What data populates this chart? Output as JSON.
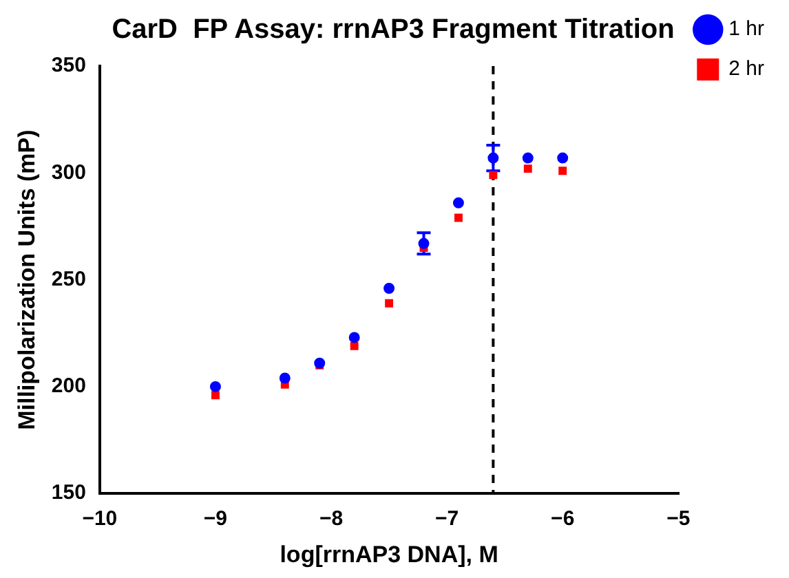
{
  "chart_data": {
    "type": "scatter",
    "title": "CarD  FP Assay: rrnAP3 Fragment Titration",
    "xlabel": "log[rrnAP3 DNA], M",
    "ylabel": "Millipolarization Units (mP)",
    "x": [
      -9,
      -8.4,
      -8.1,
      -7.8,
      -7.5,
      -7.2,
      -6.9,
      -6.6,
      -6.3,
      -6.0
    ],
    "series": [
      {
        "name": "1 hr",
        "color": "#0000ff",
        "marker": "circle",
        "values": [
          200,
          204,
          211,
          223,
          246,
          267,
          286,
          307,
          307,
          307
        ],
        "errors": [
          null,
          null,
          null,
          null,
          null,
          5,
          null,
          6,
          null,
          null
        ]
      },
      {
        "name": "2 hr",
        "color": "#ff0000",
        "marker": "square",
        "values": [
          196,
          201,
          210,
          219,
          239,
          265,
          279,
          299,
          302,
          301
        ]
      }
    ],
    "xlim": [
      -10,
      -5
    ],
    "xticks": [
      -10,
      -9,
      -8,
      -7,
      -6,
      -5
    ],
    "ylim": [
      150,
      350
    ],
    "yticks": [
      150,
      200,
      250,
      300,
      350
    ],
    "grid": false,
    "legend": "top right",
    "ref_lines": [
      {
        "axis": "x",
        "value": -6.6,
        "color": "#000000",
        "line_style": "dashed"
      }
    ]
  }
}
